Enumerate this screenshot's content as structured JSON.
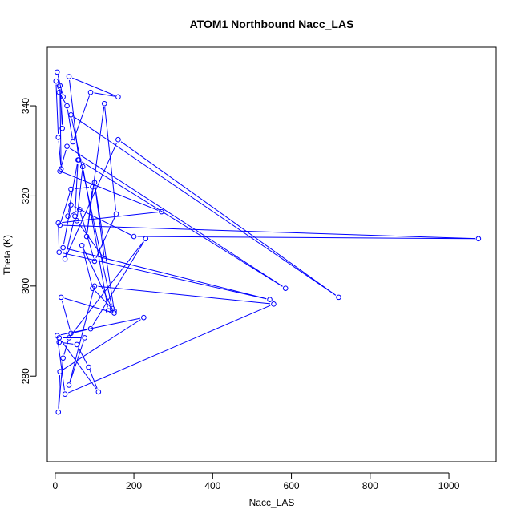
{
  "chart_data": {
    "type": "line",
    "title": "ATOM1 Northbound Nacc_LAS",
    "xlabel": "Nacc_LAS",
    "ylabel": "Theta (K)",
    "xlim": [
      -20,
      1120
    ],
    "ylim": [
      261,
      353
    ],
    "xticks": [
      0,
      200,
      400,
      600,
      800,
      1000
    ],
    "yticks": [
      280,
      300,
      320,
      340
    ],
    "grid": false,
    "legend": "none",
    "color": "#0000ff",
    "markers": "open-circle",
    "series": [
      {
        "x": [
          5,
          20,
          18,
          12,
          15,
          8,
          2,
          10,
          30,
          45,
          90,
          160,
          35,
          60,
          585,
          30,
          12,
          270,
          8,
          10,
          545,
          20,
          40,
          200,
          1075,
          12,
          40,
          95,
          80,
          125,
          155,
          100,
          62,
          32,
          58,
          50,
          25,
          160,
          720,
          40,
          145,
          135,
          70,
          55,
          125,
          100,
          150,
          95,
          68,
          150,
          15,
          40,
          90,
          230,
          35,
          20,
          8,
          12,
          225,
          5,
          25,
          555,
          100,
          35,
          75,
          10,
          110,
          85,
          55,
          10
        ],
        "y": [
          347.5,
          342,
          335,
          344.5,
          326,
          333,
          345.5,
          343,
          340,
          332,
          343,
          342,
          346.5,
          328,
          299.5,
          331,
          325.5,
          316.5,
          314,
          307.5,
          297,
          308.5,
          318,
          311,
          310.5,
          313.5,
          321.5,
          322,
          311,
          340.5,
          316,
          305.5,
          317,
          315.5,
          328,
          315.5,
          306,
          332.5,
          297.5,
          338,
          295,
          294.5,
          326.5,
          314.5,
          306,
          323,
          294.5,
          299.5,
          309,
          294,
          297.5,
          289.5,
          290.5,
          310.5,
          288.5,
          284,
          272,
          281,
          293,
          289,
          276,
          296,
          300,
          278,
          288.5,
          288.5,
          276.5,
          282,
          287,
          287.5
        ]
      }
    ]
  }
}
